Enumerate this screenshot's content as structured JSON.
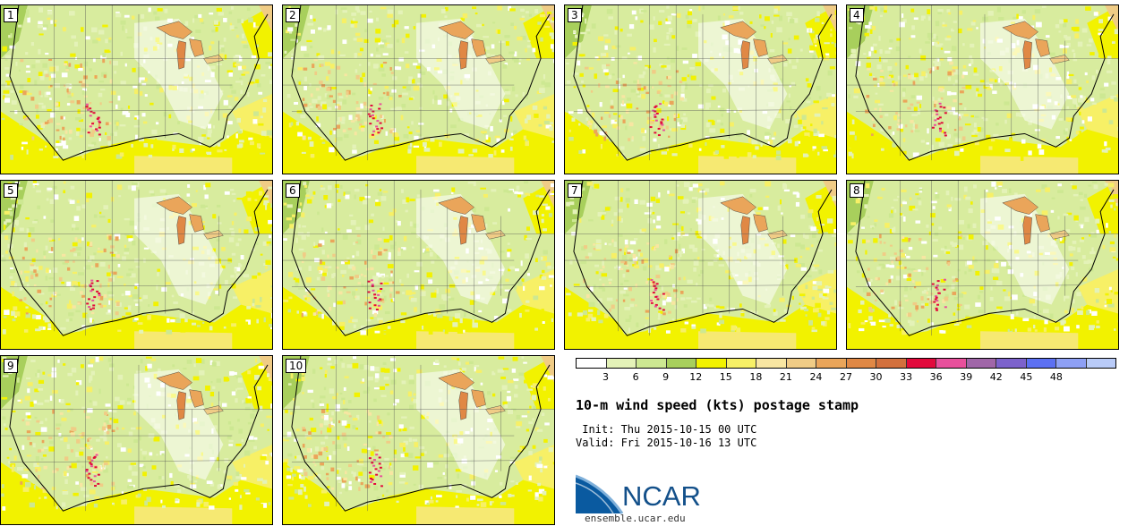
{
  "panels": [
    "1",
    "2",
    "3",
    "4",
    "5",
    "6",
    "7",
    "8",
    "9",
    "10"
  ],
  "legend": {
    "colors": [
      "#ffffff",
      "#e4f2b8",
      "#cde892",
      "#a8cf5c",
      "#f2f200",
      "#f7f066",
      "#f8e6a2",
      "#f0cc86",
      "#eaa55a",
      "#e08845",
      "#d2703d",
      "#e20a3c",
      "#e8509c",
      "#a066a8",
      "#7c62cc",
      "#5c70f2",
      "#8ea0f5",
      "#b9cbf8"
    ],
    "ticks": [
      "3",
      "6",
      "9",
      "12",
      "15",
      "18",
      "21",
      "24",
      "27",
      "30",
      "33",
      "36",
      "39",
      "42",
      "45",
      "48"
    ]
  },
  "title": "10-m wind speed (kts) postage stamp",
  "init": " Init: Thu 2015-10-15 00 UTC",
  "valid": "Valid: Fri 2015-10-16 13 UTC",
  "logo": {
    "text": "NCAR",
    "url": "ensemble.ucar.edu"
  }
}
